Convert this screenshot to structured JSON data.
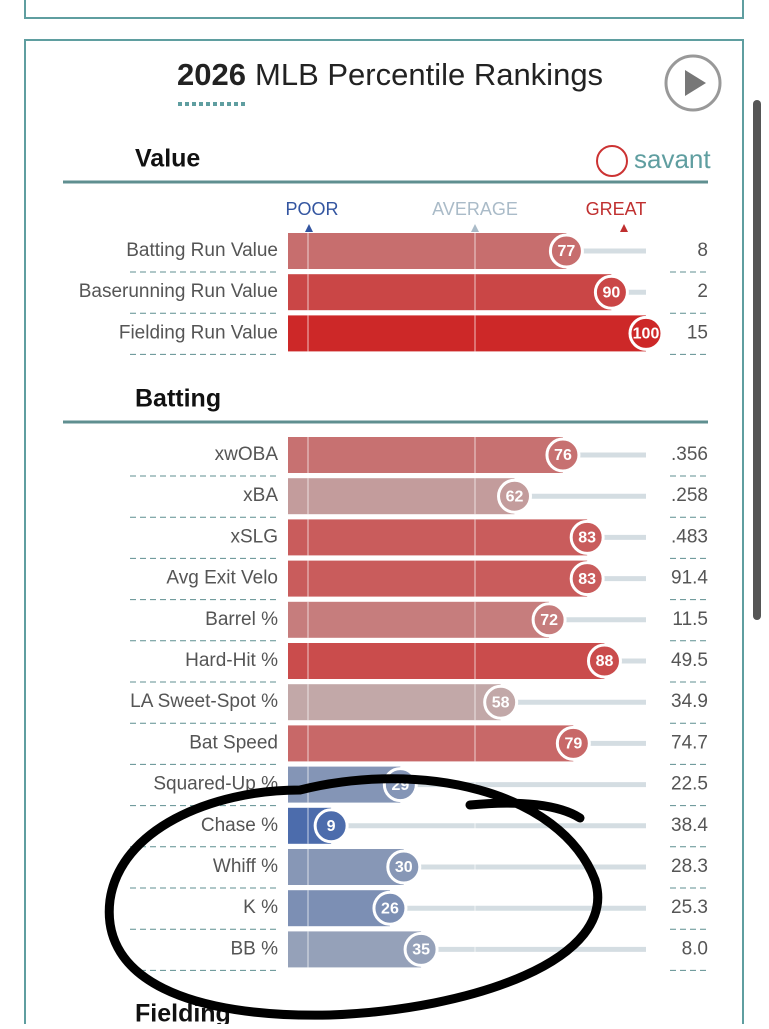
{
  "header": {
    "title_year": "2026",
    "title_rest": "MLB Percentile Rankings",
    "logo": "savant"
  },
  "scale_labels": {
    "poor": "POOR",
    "average": "AVERAGE",
    "great": "GREAT"
  },
  "sections": [
    {
      "title": "Value",
      "rows": [
        {
          "label": "Batting Run Value",
          "percentile": 77,
          "value": "8"
        },
        {
          "label": "Baserunning Run Value",
          "percentile": 90,
          "value": "2"
        },
        {
          "label": "Fielding Run Value",
          "percentile": 100,
          "value": "15"
        }
      ]
    },
    {
      "title": "Batting",
      "rows": [
        {
          "label": "xwOBA",
          "percentile": 76,
          "value": ".356"
        },
        {
          "label": "xBA",
          "percentile": 62,
          "value": ".258"
        },
        {
          "label": "xSLG",
          "percentile": 83,
          "value": ".483"
        },
        {
          "label": "Avg Exit Velo",
          "percentile": 83,
          "value": "91.4"
        },
        {
          "label": "Barrel %",
          "percentile": 72,
          "value": "11.5"
        },
        {
          "label": "Hard-Hit %",
          "percentile": 88,
          "value": "49.5"
        },
        {
          "label": "LA Sweet-Spot %",
          "percentile": 58,
          "value": "34.9"
        },
        {
          "label": "Bat Speed",
          "percentile": 79,
          "value": "74.7"
        },
        {
          "label": "Squared-Up %",
          "percentile": 29,
          "value": "22.5"
        },
        {
          "label": "Chase %",
          "percentile": 9,
          "value": "38.4"
        },
        {
          "label": "Whiff %",
          "percentile": 30,
          "value": "28.3"
        },
        {
          "label": "K %",
          "percentile": 26,
          "value": "25.3"
        },
        {
          "label": "BB %",
          "percentile": 35,
          "value": "8.0"
        }
      ]
    },
    {
      "title": "Fielding",
      "rows": []
    }
  ]
}
